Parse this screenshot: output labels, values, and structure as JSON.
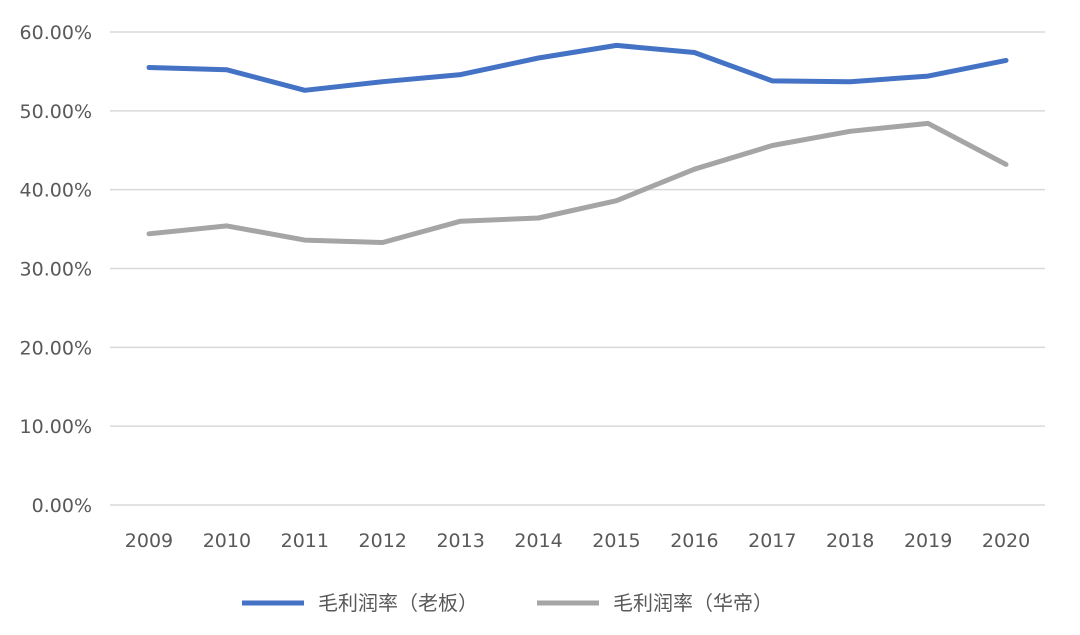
{
  "chart_data": {
    "type": "line",
    "title": "",
    "xlabel": "",
    "ylabel": "",
    "categories": [
      "2009",
      "2010",
      "2011",
      "2012",
      "2013",
      "2014",
      "2015",
      "2016",
      "2017",
      "2018",
      "2019",
      "2020"
    ],
    "y_ticks": [
      "0.00%",
      "10.00%",
      "20.00%",
      "30.00%",
      "40.00%",
      "50.00%",
      "60.00%"
    ],
    "ylim": [
      0,
      60
    ],
    "grid": true,
    "legend_position": "bottom",
    "series": [
      {
        "name": "毛利润率（老板）",
        "color": "#4472c4",
        "values": [
          55.5,
          55.2,
          52.6,
          53.7,
          54.6,
          56.7,
          58.3,
          57.4,
          53.8,
          53.7,
          54.4,
          56.4
        ]
      },
      {
        "name": "毛利润率（华帝）",
        "color": "#a5a5a5",
        "values": [
          34.4,
          35.4,
          33.6,
          33.3,
          36.0,
          36.4,
          38.6,
          42.6,
          45.6,
          47.4,
          48.4,
          43.2
        ]
      }
    ]
  }
}
